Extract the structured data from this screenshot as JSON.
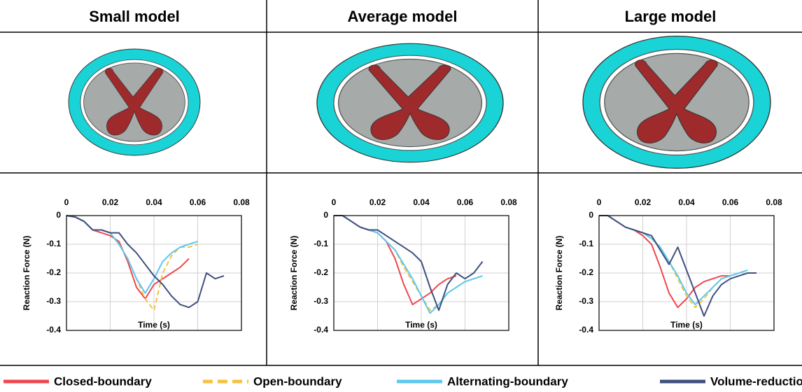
{
  "chart_data": [
    {
      "type": "line",
      "title": "Small model",
      "xlabel": "Time (s)",
      "ylabel": "Reaction Force (N)",
      "xlim": [
        0,
        0.08
      ],
      "xticks": [
        0,
        0.02,
        0.04,
        0.06,
        0.08
      ],
      "ylim": [
        -0.4,
        0
      ],
      "yticks": [
        0,
        -0.1,
        -0.2,
        -0.3,
        -0.4
      ],
      "grid": true,
      "x": [
        0,
        0.004,
        0.008,
        0.012,
        0.016,
        0.02,
        0.024,
        0.028,
        0.032,
        0.036,
        0.04,
        0.044,
        0.048,
        0.052,
        0.056,
        0.06,
        0.064,
        0.068,
        0.072
      ],
      "series": [
        {
          "name": "Closed-boundary",
          "color": "#f0474f",
          "dashed": false,
          "values": [
            0,
            -0.005,
            -0.02,
            -0.05,
            -0.06,
            -0.07,
            -0.09,
            -0.16,
            -0.25,
            -0.29,
            -0.24,
            -0.22,
            -0.2,
            -0.18,
            -0.15,
            null,
            null,
            null,
            null
          ]
        },
        {
          "name": "Open-boundary",
          "color": "#f5c242",
          "dashed": true,
          "values": [
            0,
            -0.005,
            -0.02,
            -0.05,
            -0.05,
            -0.06,
            -0.1,
            -0.15,
            -0.22,
            -0.29,
            -0.33,
            -0.2,
            -0.14,
            -0.11,
            -0.11,
            -0.1,
            null,
            null,
            null
          ]
        },
        {
          "name": "Alternating-boundary",
          "color": "#5bc8f0",
          "dashed": false,
          "values": [
            0,
            -0.005,
            -0.02,
            -0.05,
            -0.05,
            -0.06,
            -0.1,
            -0.15,
            -0.22,
            -0.27,
            -0.22,
            -0.16,
            -0.13,
            -0.11,
            -0.1,
            -0.09,
            null,
            null,
            null
          ]
        },
        {
          "name": "Volume-reduction",
          "color": "#3f4f7f",
          "dashed": false,
          "values": [
            0,
            -0.005,
            -0.02,
            -0.05,
            -0.05,
            -0.06,
            -0.06,
            -0.1,
            -0.13,
            -0.17,
            -0.21,
            -0.24,
            -0.28,
            -0.31,
            -0.32,
            -0.3,
            -0.2,
            -0.22,
            -0.21
          ]
        }
      ]
    },
    {
      "type": "line",
      "title": "Average model",
      "xlabel": "Time (s)",
      "ylabel": "Reaction Force (N)",
      "xlim": [
        0,
        0.08
      ],
      "xticks": [
        0,
        0.02,
        0.04,
        0.06,
        0.08
      ],
      "ylim": [
        -0.4,
        0
      ],
      "yticks": [
        0,
        -0.1,
        -0.2,
        -0.3,
        -0.4
      ],
      "grid": true,
      "x": [
        0,
        0.004,
        0.008,
        0.012,
        0.016,
        0.02,
        0.024,
        0.028,
        0.032,
        0.036,
        0.04,
        0.044,
        0.048,
        0.052,
        0.056,
        0.06,
        0.064,
        0.068,
        0.072
      ],
      "series": [
        {
          "name": "Closed-boundary",
          "color": "#f0474f",
          "dashed": false,
          "values": [
            0,
            0,
            -0.02,
            -0.04,
            -0.05,
            -0.06,
            -0.09,
            -0.15,
            -0.24,
            -0.31,
            -0.29,
            -0.27,
            -0.24,
            -0.22,
            -0.21,
            null,
            null,
            null,
            null
          ]
        },
        {
          "name": "Open-boundary",
          "color": "#f5c242",
          "dashed": true,
          "values": [
            0,
            0,
            -0.02,
            -0.04,
            -0.05,
            -0.06,
            -0.09,
            -0.12,
            -0.18,
            -0.23,
            -0.28,
            -0.33,
            -0.31,
            -0.27,
            -0.25,
            -0.23,
            -0.22,
            -0.21,
            null
          ]
        },
        {
          "name": "Alternating-boundary",
          "color": "#5bc8f0",
          "dashed": false,
          "values": [
            0,
            0,
            -0.02,
            -0.04,
            -0.05,
            -0.06,
            -0.09,
            -0.12,
            -0.17,
            -0.22,
            -0.28,
            -0.34,
            -0.31,
            -0.27,
            -0.25,
            -0.23,
            -0.22,
            -0.21,
            null
          ]
        },
        {
          "name": "Volume-reduction",
          "color": "#3f4f7f",
          "dashed": false,
          "values": [
            0,
            0,
            -0.02,
            -0.04,
            -0.05,
            -0.05,
            -0.07,
            -0.09,
            -0.11,
            -0.13,
            -0.16,
            -0.25,
            -0.33,
            -0.24,
            -0.2,
            -0.22,
            -0.2,
            -0.16,
            null
          ]
        }
      ]
    },
    {
      "type": "line",
      "title": "Large model",
      "xlabel": "Time (s)",
      "ylabel": "Reaction Force (N)",
      "xlim": [
        0,
        0.08
      ],
      "xticks": [
        0,
        0.02,
        0.04,
        0.06,
        0.08
      ],
      "ylim": [
        -0.4,
        0
      ],
      "yticks": [
        0,
        -0.1,
        -0.2,
        -0.3,
        -0.4
      ],
      "grid": true,
      "x": [
        0,
        0.004,
        0.008,
        0.012,
        0.016,
        0.02,
        0.024,
        0.028,
        0.032,
        0.036,
        0.04,
        0.044,
        0.048,
        0.052,
        0.056,
        0.06,
        0.064,
        0.068,
        0.072
      ],
      "series": [
        {
          "name": "Closed-boundary",
          "color": "#f0474f",
          "dashed": false,
          "values": [
            0,
            0,
            -0.02,
            -0.04,
            -0.05,
            -0.07,
            -0.1,
            -0.18,
            -0.27,
            -0.32,
            -0.29,
            -0.25,
            -0.23,
            -0.22,
            -0.21,
            -0.21,
            null,
            null,
            null
          ]
        },
        {
          "name": "Open-boundary",
          "color": "#f5c242",
          "dashed": true,
          "values": [
            0,
            0,
            -0.02,
            -0.04,
            -0.05,
            -0.06,
            -0.08,
            -0.11,
            -0.16,
            -0.22,
            -0.28,
            -0.32,
            -0.29,
            -0.25,
            -0.22,
            -0.21,
            -0.2,
            -0.19,
            null
          ]
        },
        {
          "name": "Alternating-boundary",
          "color": "#5bc8f0",
          "dashed": false,
          "values": [
            0,
            0,
            -0.02,
            -0.04,
            -0.05,
            -0.06,
            -0.08,
            -0.11,
            -0.16,
            -0.21,
            -0.27,
            -0.31,
            -0.28,
            -0.25,
            -0.22,
            -0.21,
            -0.2,
            -0.19,
            null
          ]
        },
        {
          "name": "Volume-reduction",
          "color": "#3f4f7f",
          "dashed": false,
          "values": [
            0,
            0,
            -0.02,
            -0.04,
            -0.05,
            -0.06,
            -0.07,
            -0.12,
            -0.17,
            -0.11,
            -0.19,
            -0.27,
            -0.35,
            -0.28,
            -0.24,
            -0.22,
            -0.21,
            -0.2,
            -0.2
          ]
        }
      ]
    }
  ]
}
